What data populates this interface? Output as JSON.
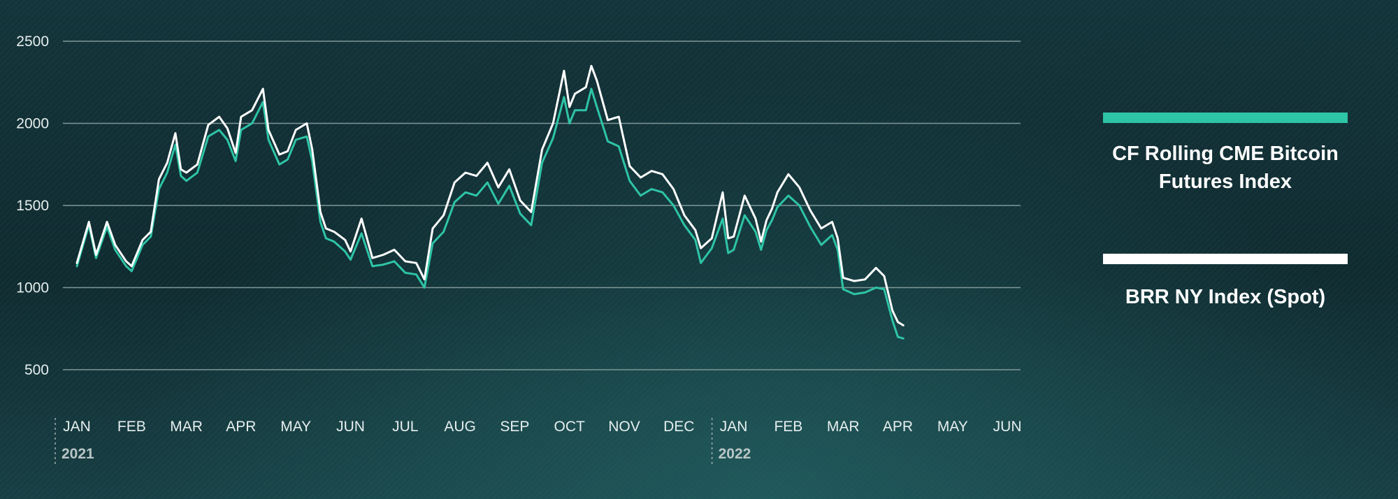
{
  "colors": {
    "futures": "#2ec4a6",
    "spot": "#ffffff",
    "grid": "#7f9898"
  },
  "chart_data": {
    "type": "line",
    "ylim": [
      300,
      2600
    ],
    "yticks": [
      500,
      1000,
      1500,
      2000,
      2500
    ],
    "months": [
      "JAN",
      "FEB",
      "MAR",
      "APR",
      "MAY",
      "JUN",
      "JUL",
      "AUG",
      "SEP",
      "OCT",
      "NOV",
      "DEC",
      "JAN",
      "FEB",
      "MAR",
      "APR",
      "MAY",
      "JUN"
    ],
    "years": [
      {
        "label": "2021",
        "month_index": 0
      },
      {
        "label": "2022",
        "month_index": 12
      }
    ],
    "grid": true,
    "legend_position": "right",
    "series": [
      {
        "name": "CF Rolling CME Bitcoin Futures Index",
        "color_key": "futures",
        "points": [
          [
            0.0,
            1130
          ],
          [
            0.22,
            1380
          ],
          [
            0.35,
            1180
          ],
          [
            0.55,
            1370
          ],
          [
            0.7,
            1230
          ],
          [
            0.9,
            1130
          ],
          [
            1.0,
            1100
          ],
          [
            1.2,
            1260
          ],
          [
            1.35,
            1310
          ],
          [
            1.5,
            1600
          ],
          [
            1.65,
            1700
          ],
          [
            1.8,
            1870
          ],
          [
            1.9,
            1680
          ],
          [
            2.0,
            1650
          ],
          [
            2.2,
            1700
          ],
          [
            2.4,
            1920
          ],
          [
            2.6,
            1960
          ],
          [
            2.75,
            1900
          ],
          [
            2.9,
            1770
          ],
          [
            3.0,
            1960
          ],
          [
            3.2,
            2000
          ],
          [
            3.4,
            2130
          ],
          [
            3.5,
            1900
          ],
          [
            3.7,
            1750
          ],
          [
            3.85,
            1780
          ],
          [
            4.0,
            1900
          ],
          [
            4.2,
            1920
          ],
          [
            4.3,
            1770
          ],
          [
            4.45,
            1400
          ],
          [
            4.55,
            1300
          ],
          [
            4.7,
            1280
          ],
          [
            4.9,
            1220
          ],
          [
            5.0,
            1170
          ],
          [
            5.2,
            1330
          ],
          [
            5.4,
            1130
          ],
          [
            5.6,
            1140
          ],
          [
            5.8,
            1160
          ],
          [
            6.0,
            1090
          ],
          [
            6.2,
            1080
          ],
          [
            6.35,
            1000
          ],
          [
            6.5,
            1270
          ],
          [
            6.7,
            1340
          ],
          [
            6.9,
            1520
          ],
          [
            7.1,
            1580
          ],
          [
            7.3,
            1560
          ],
          [
            7.5,
            1640
          ],
          [
            7.7,
            1510
          ],
          [
            7.9,
            1620
          ],
          [
            8.1,
            1450
          ],
          [
            8.3,
            1380
          ],
          [
            8.5,
            1760
          ],
          [
            8.7,
            1910
          ],
          [
            8.9,
            2160
          ],
          [
            9.0,
            2000
          ],
          [
            9.1,
            2080
          ],
          [
            9.3,
            2080
          ],
          [
            9.4,
            2210
          ],
          [
            9.5,
            2100
          ],
          [
            9.7,
            1890
          ],
          [
            9.9,
            1860
          ],
          [
            10.1,
            1650
          ],
          [
            10.3,
            1560
          ],
          [
            10.5,
            1600
          ],
          [
            10.7,
            1580
          ],
          [
            10.9,
            1500
          ],
          [
            11.1,
            1380
          ],
          [
            11.3,
            1290
          ],
          [
            11.4,
            1150
          ],
          [
            11.6,
            1240
          ],
          [
            11.8,
            1420
          ],
          [
            11.9,
            1210
          ],
          [
            12.0,
            1230
          ],
          [
            12.2,
            1440
          ],
          [
            12.4,
            1340
          ],
          [
            12.5,
            1230
          ],
          [
            12.6,
            1350
          ],
          [
            12.7,
            1410
          ],
          [
            12.8,
            1490
          ],
          [
            13.0,
            1560
          ],
          [
            13.2,
            1500
          ],
          [
            13.4,
            1370
          ],
          [
            13.6,
            1260
          ],
          [
            13.8,
            1320
          ],
          [
            13.9,
            1230
          ],
          [
            14.0,
            990
          ],
          [
            14.2,
            960
          ],
          [
            14.4,
            970
          ],
          [
            14.6,
            1000
          ],
          [
            14.75,
            990
          ],
          [
            14.9,
            800
          ],
          [
            15.0,
            700
          ],
          [
            15.1,
            690
          ]
        ]
      },
      {
        "name": "BRR NY Index (Spot)",
        "color_key": "spot",
        "points": [
          [
            0.0,
            1150
          ],
          [
            0.22,
            1400
          ],
          [
            0.35,
            1200
          ],
          [
            0.55,
            1400
          ],
          [
            0.7,
            1260
          ],
          [
            0.9,
            1160
          ],
          [
            1.0,
            1130
          ],
          [
            1.2,
            1290
          ],
          [
            1.35,
            1340
          ],
          [
            1.5,
            1660
          ],
          [
            1.65,
            1760
          ],
          [
            1.8,
            1940
          ],
          [
            1.9,
            1720
          ],
          [
            2.0,
            1700
          ],
          [
            2.2,
            1750
          ],
          [
            2.4,
            1990
          ],
          [
            2.6,
            2040
          ],
          [
            2.75,
            1970
          ],
          [
            2.9,
            1820
          ],
          [
            3.0,
            2040
          ],
          [
            3.2,
            2080
          ],
          [
            3.4,
            2210
          ],
          [
            3.5,
            1960
          ],
          [
            3.7,
            1810
          ],
          [
            3.85,
            1830
          ],
          [
            4.0,
            1960
          ],
          [
            4.2,
            2000
          ],
          [
            4.3,
            1840
          ],
          [
            4.45,
            1460
          ],
          [
            4.55,
            1360
          ],
          [
            4.7,
            1340
          ],
          [
            4.9,
            1290
          ],
          [
            5.0,
            1220
          ],
          [
            5.2,
            1420
          ],
          [
            5.4,
            1180
          ],
          [
            5.6,
            1200
          ],
          [
            5.8,
            1230
          ],
          [
            6.0,
            1160
          ],
          [
            6.2,
            1150
          ],
          [
            6.35,
            1050
          ],
          [
            6.5,
            1360
          ],
          [
            6.7,
            1440
          ],
          [
            6.9,
            1640
          ],
          [
            7.1,
            1700
          ],
          [
            7.3,
            1680
          ],
          [
            7.5,
            1760
          ],
          [
            7.7,
            1610
          ],
          [
            7.9,
            1720
          ],
          [
            8.1,
            1530
          ],
          [
            8.3,
            1460
          ],
          [
            8.5,
            1840
          ],
          [
            8.7,
            2000
          ],
          [
            8.9,
            2320
          ],
          [
            9.0,
            2100
          ],
          [
            9.1,
            2180
          ],
          [
            9.3,
            2220
          ],
          [
            9.4,
            2350
          ],
          [
            9.5,
            2260
          ],
          [
            9.7,
            2020
          ],
          [
            9.9,
            2040
          ],
          [
            10.1,
            1740
          ],
          [
            10.3,
            1670
          ],
          [
            10.5,
            1710
          ],
          [
            10.7,
            1690
          ],
          [
            10.9,
            1600
          ],
          [
            11.1,
            1440
          ],
          [
            11.3,
            1350
          ],
          [
            11.4,
            1240
          ],
          [
            11.6,
            1300
          ],
          [
            11.8,
            1580
          ],
          [
            11.9,
            1300
          ],
          [
            12.0,
            1310
          ],
          [
            12.2,
            1560
          ],
          [
            12.4,
            1420
          ],
          [
            12.5,
            1280
          ],
          [
            12.6,
            1410
          ],
          [
            12.7,
            1480
          ],
          [
            12.8,
            1580
          ],
          [
            13.0,
            1690
          ],
          [
            13.2,
            1610
          ],
          [
            13.4,
            1470
          ],
          [
            13.6,
            1360
          ],
          [
            13.8,
            1400
          ],
          [
            13.9,
            1300
          ],
          [
            14.0,
            1060
          ],
          [
            14.2,
            1040
          ],
          [
            14.4,
            1050
          ],
          [
            14.6,
            1120
          ],
          [
            14.75,
            1070
          ],
          [
            14.9,
            860
          ],
          [
            15.0,
            790
          ],
          [
            15.1,
            770
          ]
        ]
      }
    ]
  }
}
